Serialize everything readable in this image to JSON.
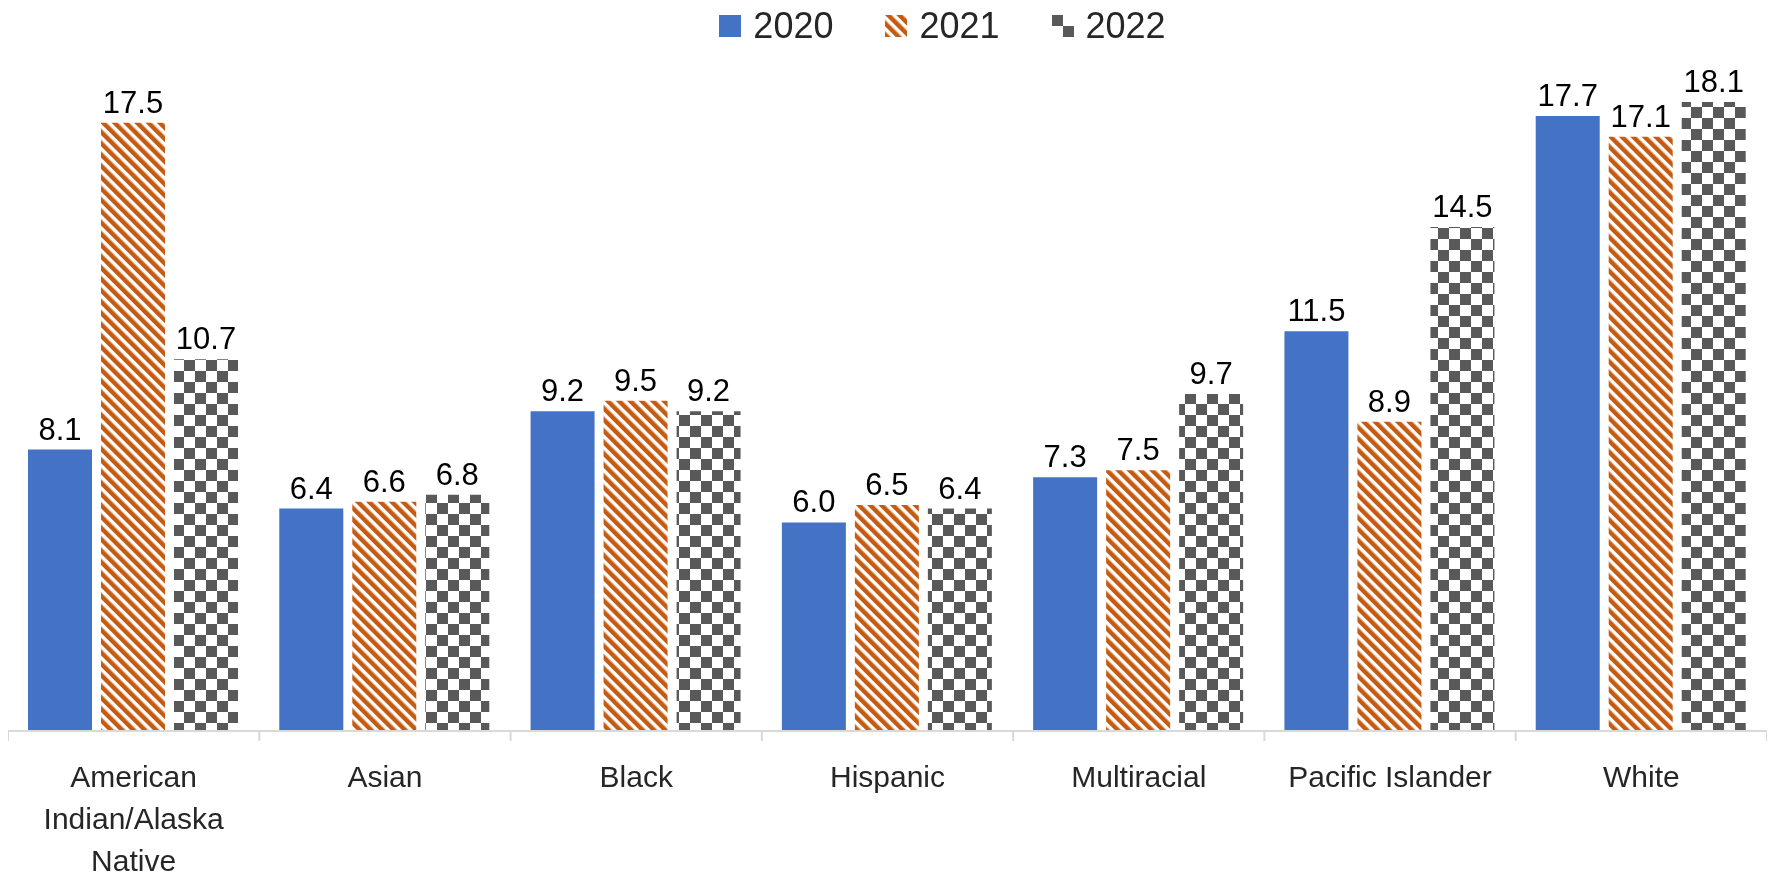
{
  "chart_data": {
    "type": "bar",
    "categories": [
      "American Indian/Alaska Native",
      "Asian",
      "Black",
      "Hispanic",
      "Multiracial",
      "Pacific Islander",
      "White"
    ],
    "series": [
      {
        "name": "2020",
        "color": "#4472c4",
        "values": [
          8.1,
          6.4,
          9.2,
          6.0,
          7.3,
          11.5,
          17.7
        ],
        "value_labels": [
          "8.1",
          "6.4",
          "9.2",
          "6.0",
          "7.3",
          "11.5",
          "17.7"
        ]
      },
      {
        "name": "2021",
        "color": "#c55a11",
        "values": [
          17.5,
          6.6,
          9.5,
          6.5,
          7.5,
          8.9,
          17.1
        ],
        "value_labels": [
          "17.5",
          "6.6",
          "9.5",
          "6.5",
          "7.5",
          "8.9",
          "17.1"
        ]
      },
      {
        "name": "2022",
        "color": "#595959",
        "values": [
          10.7,
          6.8,
          9.2,
          6.4,
          9.7,
          14.5,
          18.1
        ],
        "value_labels": [
          "10.7",
          "6.8",
          "9.2",
          "6.4",
          "9.7",
          "14.5",
          "18.1"
        ]
      }
    ],
    "legend": "top",
    "tick_labels": "x"
  }
}
